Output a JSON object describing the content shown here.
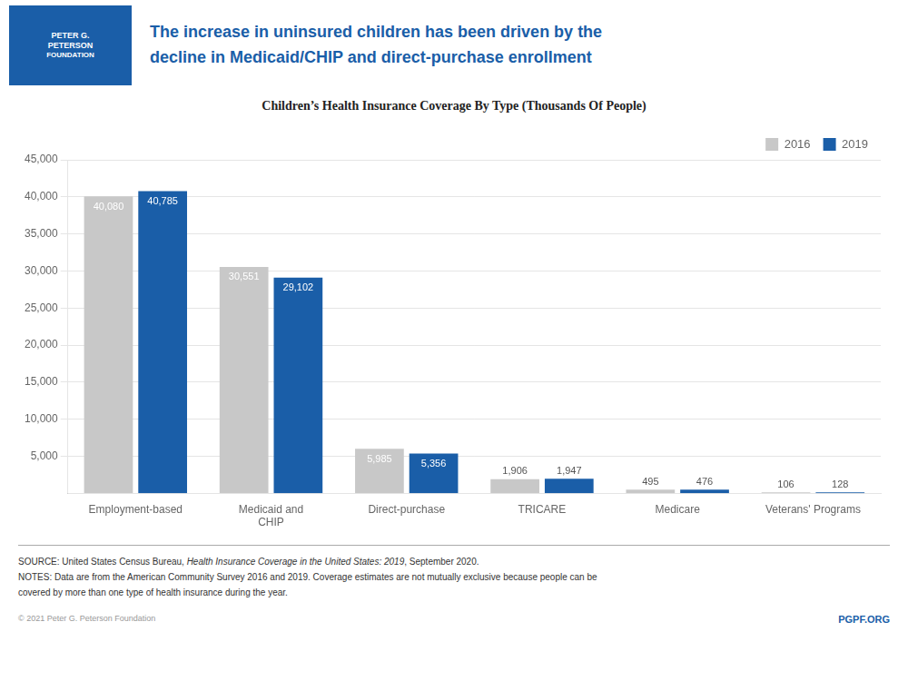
{
  "chart_data": {
    "type": "bar",
    "title": "Children’s Health Insurance Coverage By Type (Thousands Of People)",
    "subtitle": [
      "The increase in uninsured children has been driven by the",
      "decline in Medicaid/CHIP and direct-purchase enrollment"
    ],
    "annotations": [
      "PETER G.",
      "PETERSON",
      "FOUNDATION",
      "SOURCE: United States Census Bureau, ",
      "Health Insurance Coverage in the United States: 2019",
      ", September 2020.",
      "NOTES: Data are from the American Community Survey 2016 and 2019. Coverage estimates are not mutually exclusive because people can be",
      "covered by more than one type of health insurance during the year.",
      "© 2021 Peter G. Peterson Foundation",
      "PGPF.ORG"
    ],
    "categories": [
      "Employment-based",
      "Medicaid and\nCHIP",
      "Direct-purchase",
      "TRICARE",
      "Medicare",
      "Veterans' Programs"
    ],
    "series": [
      {
        "name": "2016",
        "color": "#c8c8c8",
        "values": [
          40080,
          30551,
          5985,
          1906,
          495,
          106
        ],
        "value_labels": [
          "40,080",
          "30,551",
          "5,985",
          "1,906",
          "495",
          "106"
        ]
      },
      {
        "name": "2019",
        "color": "#1a5ea8",
        "values": [
          40785,
          29102,
          5356,
          1947,
          476,
          128
        ],
        "value_labels": [
          "40,785",
          "29,102",
          "5,356",
          "1,947",
          "476",
          "128"
        ]
      }
    ],
    "ylim": [
      0,
      45000
    ],
    "yticks": [
      {
        "value": 5000,
        "label": "5,000"
      },
      {
        "value": 10000,
        "label": "10,000"
      },
      {
        "value": 15000,
        "label": "15,000"
      },
      {
        "value": 20000,
        "label": "20,000"
      },
      {
        "value": 25000,
        "label": "25,000"
      },
      {
        "value": 30000,
        "label": "30,000"
      },
      {
        "value": 35000,
        "label": "35,000"
      },
      {
        "value": 40000,
        "label": "40,000"
      },
      {
        "value": 45000,
        "label": "45,000"
      }
    ],
    "grid": true,
    "legend": "upper right",
    "data_labels": true
  }
}
